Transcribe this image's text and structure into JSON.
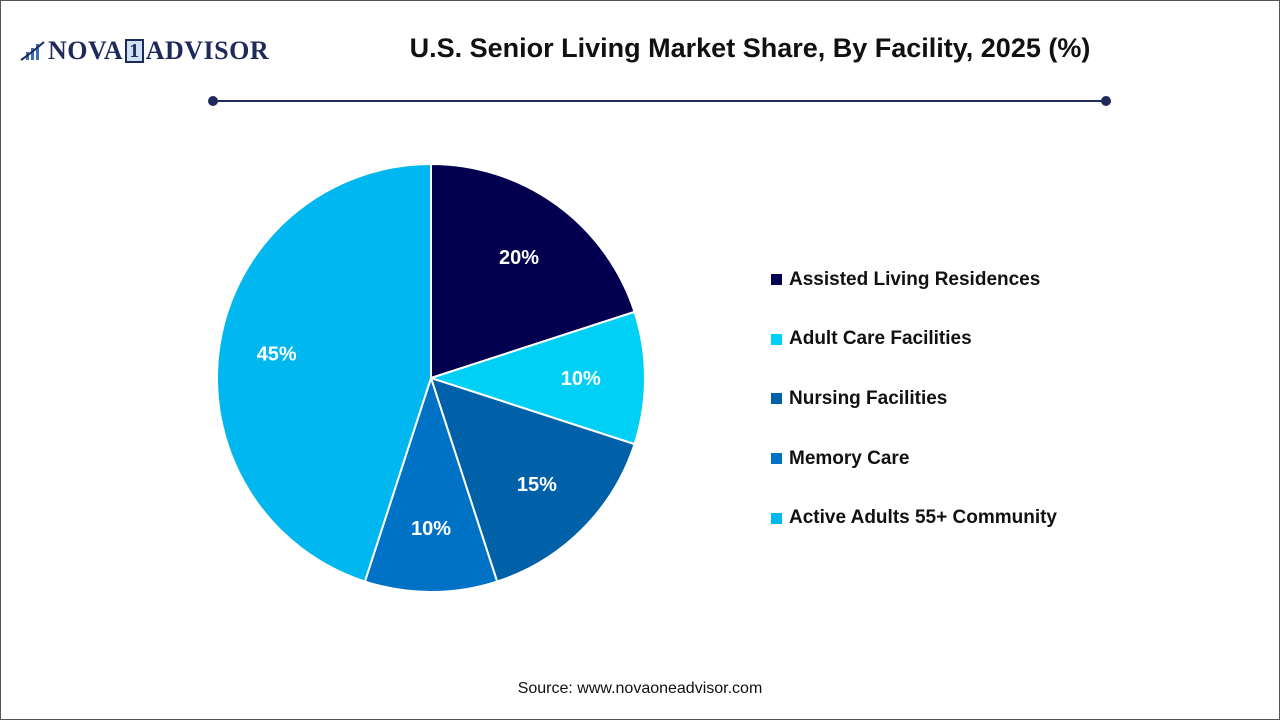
{
  "logo": {
    "text_a": "NOVA",
    "text_one": "1",
    "text_b": "ADVISOR"
  },
  "header": {
    "title": "U.S. Senior Living Market Share, By Facility, 2025 (%)"
  },
  "source": "Source: www.novaoneadvisor.com",
  "chart_data": {
    "type": "pie",
    "title": "U.S. Senior Living Market Share, By Facility, 2025 (%)",
    "start_angle": "12 o'clock, clockwise",
    "legend_position": "right",
    "slices": [
      {
        "label": "Assisted Living Residences",
        "value": 20,
        "display": "20%",
        "color": "#03004f"
      },
      {
        "label": "Adult Care Facilities",
        "value": 10,
        "display": "10%",
        "color": "#00d0f5"
      },
      {
        "label": "Nursing Facilities",
        "value": 15,
        "display": "15%",
        "color": "#0060a8"
      },
      {
        "label": "Memory Care",
        "value": 10,
        "display": "10%",
        "color": "#0072c6"
      },
      {
        "label": "Active Adults 55+ Community",
        "value": 45,
        "display": "45%",
        "color": "#00b8ef"
      }
    ]
  }
}
